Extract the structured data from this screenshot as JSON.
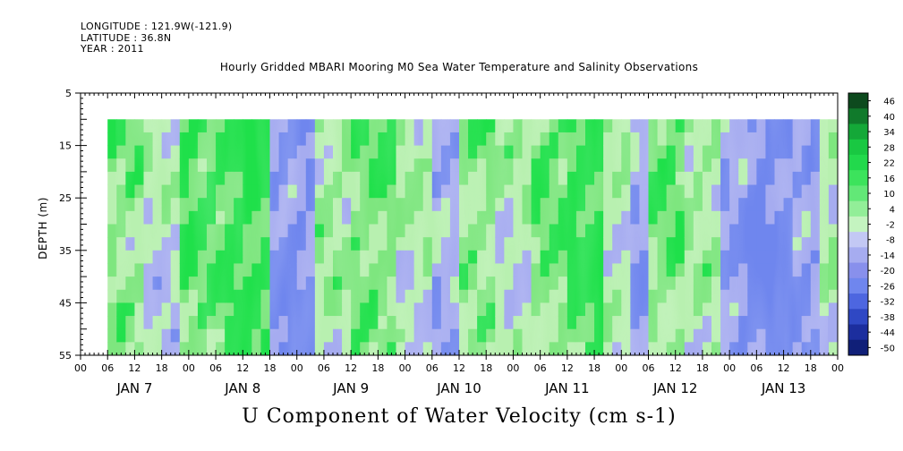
{
  "header": {
    "longitude": "LONGITUDE : 121.9W(-121.9)",
    "latitude": "LATITUDE : 36.8N",
    "year": "YEAR : 2011"
  },
  "variable_label": "U Component of Water Velocity (cm s-1)",
  "chart_data": {
    "type": "heatmap",
    "title": "Hourly Gridded MBARI Mooring M0 Sea Water Temperature and Salinity Observations",
    "ylabel": "DEPTH (m)",
    "xlabel": "",
    "y_axis": {
      "range": [
        5,
        55
      ],
      "inverted": true,
      "tick_labels": [
        "5",
        "15",
        "25",
        "35",
        "45",
        "55"
      ],
      "tick_values": [
        5,
        15,
        25,
        35,
        45,
        55
      ]
    },
    "x_axis": {
      "start": "2011-01-06T00:00",
      "end": "2011-01-13T00:00",
      "hour_tick_labels": [
        "00",
        "06",
        "12",
        "18",
        "00",
        "06",
        "12",
        "18",
        "00",
        "06",
        "12",
        "18",
        "00",
        "06",
        "12",
        "18",
        "00",
        "06",
        "12",
        "18",
        "00",
        "06",
        "12",
        "18",
        "00",
        "06",
        "12",
        "18",
        "00"
      ],
      "day_labels": [
        "JAN 7",
        "JAN 8",
        "JAN 9",
        "JAN 10",
        "JAN 11",
        "JAN 12",
        "JAN 13"
      ]
    },
    "data_extent": {
      "time_start": "2011-01-06T06:00",
      "time_end": "2011-01-13T00:00",
      "depth_top": 10,
      "depth_bottom": 55
    },
    "colorbar": {
      "levels": [
        "46",
        "40",
        "34",
        "28",
        "22",
        "16",
        "10",
        "4",
        "-2",
        "-8",
        "-14",
        "-20",
        "-26",
        "-32",
        "-38",
        "-44",
        "-50"
      ],
      "max": 50,
      "min": -50
    },
    "colors": {
      "strong_positive": "#1fe04a",
      "positive": "#7ee67f",
      "near_zero": "#b8f0b0",
      "negative": "#a6acf0",
      "strong_negative": "#6f86ee"
    },
    "pattern": {
      "description_columns_hours": [
        {
          "from": 6,
          "to": 14,
          "u": 8
        },
        {
          "from": 14,
          "to": 22,
          "u": 2
        },
        {
          "from": 22,
          "to": 32,
          "u": 12
        },
        {
          "from": 32,
          "to": 42,
          "u": 14
        },
        {
          "from": 42,
          "to": 52,
          "u": -6
        },
        {
          "from": 52,
          "to": 60,
          "u": 6
        },
        {
          "from": 60,
          "to": 70,
          "u": 10
        },
        {
          "from": 70,
          "to": 78,
          "u": 4
        },
        {
          "from": 78,
          "to": 84,
          "u": -2
        },
        {
          "from": 84,
          "to": 92,
          "u": 8
        },
        {
          "from": 92,
          "to": 100,
          "u": 4
        },
        {
          "from": 100,
          "to": 108,
          "u": 10
        },
        {
          "from": 108,
          "to": 116,
          "u": 14
        },
        {
          "from": 116,
          "to": 122,
          "u": 4
        },
        {
          "from": 122,
          "to": 126,
          "u": -4
        },
        {
          "from": 126,
          "to": 134,
          "u": 10
        },
        {
          "from": 134,
          "to": 142,
          "u": 6
        },
        {
          "from": 142,
          "to": 148,
          "u": -4
        },
        {
          "from": 148,
          "to": 158,
          "u": -8
        },
        {
          "from": 158,
          "to": 164,
          "u": -4
        },
        {
          "from": 164,
          "to": 168,
          "u": 4
        }
      ]
    }
  }
}
